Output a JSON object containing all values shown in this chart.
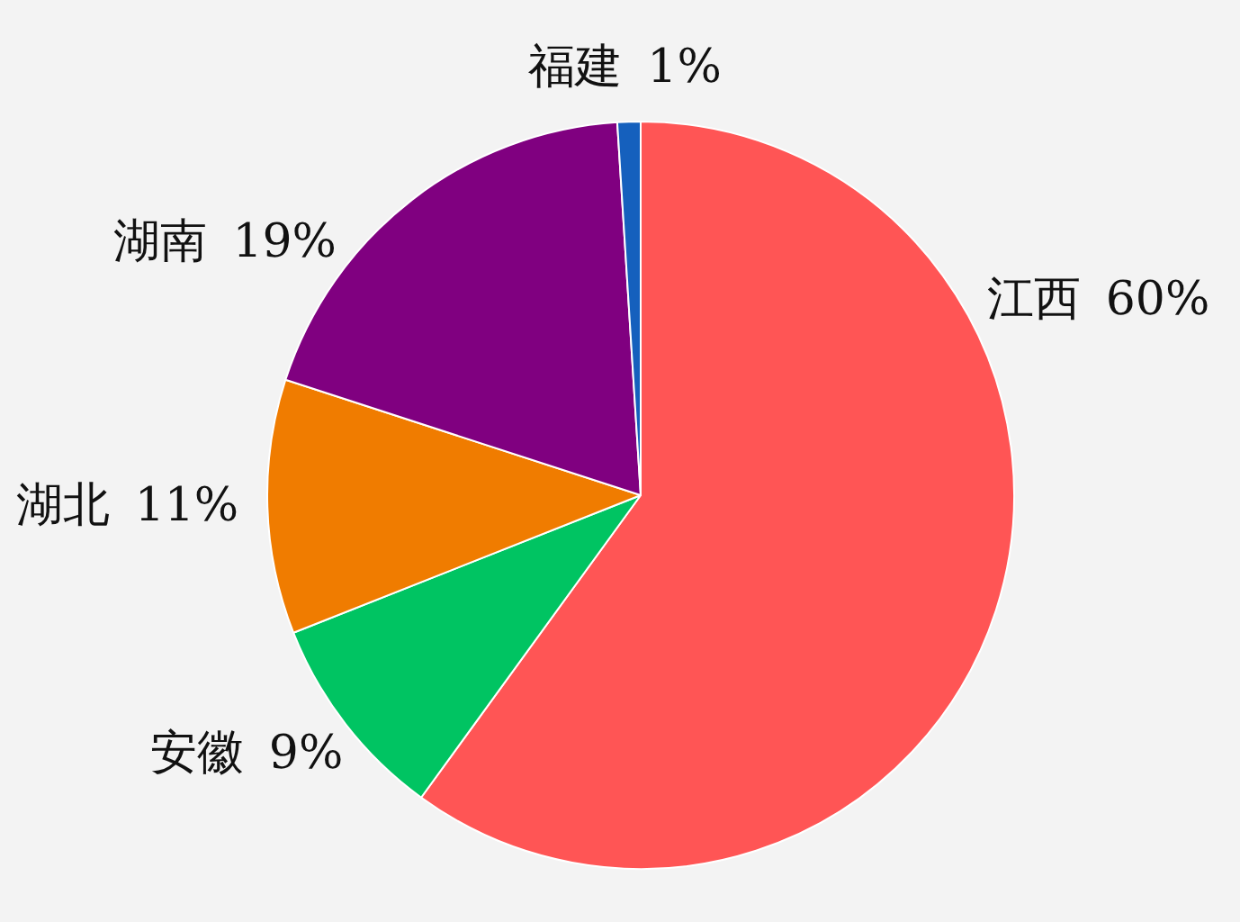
{
  "chart_data": {
    "type": "pie",
    "categories": [
      "江西",
      "安徽",
      "湖北",
      "湖南",
      "福建"
    ],
    "values": [
      60,
      9,
      11,
      19,
      1
    ],
    "value_labels": [
      "60%",
      "9%",
      "11%",
      "19%",
      "1%"
    ],
    "colors": [
      "#ff5555",
      "#00c462",
      "#f07c00",
      "#800080",
      "#1560bd"
    ]
  }
}
